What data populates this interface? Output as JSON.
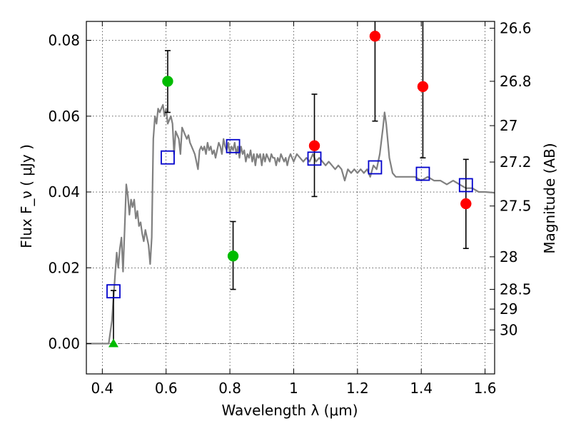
{
  "chart_data": {
    "type": "scatter",
    "title": "",
    "xlabel": "Wavelength  λ (μm)",
    "ylabel": "Flux  F_ν  ( μJy )",
    "ylabel_right": "Magnitude (AB)",
    "xlim": [
      0.35,
      1.63
    ],
    "ylim": [
      -0.008,
      0.085
    ],
    "grid": true,
    "x_ticks": [
      {
        "v": 0.4,
        "label": "0.4"
      },
      {
        "v": 0.6,
        "label": "0.6"
      },
      {
        "v": 0.8,
        "label": "0.8"
      },
      {
        "v": 1.0,
        "label": "1"
      },
      {
        "v": 1.2,
        "label": "1.2"
      },
      {
        "v": 1.4,
        "label": "1.4"
      },
      {
        "v": 1.6,
        "label": "1.6"
      }
    ],
    "y_ticks": [
      {
        "v": 0.0,
        "label": "0.00"
      },
      {
        "v": 0.02,
        "label": "0.02"
      },
      {
        "v": 0.04,
        "label": "0.04"
      },
      {
        "v": 0.06,
        "label": "0.06"
      },
      {
        "v": 0.08,
        "label": "0.08"
      }
    ],
    "right_ticks": [
      {
        "label": "26.6",
        "flux": 0.0832
      },
      {
        "label": "26.8",
        "flux": 0.0692
      },
      {
        "label": "27",
        "flux": 0.0575
      },
      {
        "label": "27.2",
        "flux": 0.0479
      },
      {
        "label": "27.5",
        "flux": 0.0363
      },
      {
        "label": "28",
        "flux": 0.0229
      },
      {
        "label": "28.5",
        "flux": 0.0143
      },
      {
        "label": "29",
        "flux": 0.0091
      },
      {
        "label": "30",
        "flux": 0.0036
      }
    ],
    "template_series": {
      "color": "#808080",
      "points": [
        [
          0.35,
          0.0
        ],
        [
          0.42,
          0.0
        ],
        [
          0.43,
          0.006
        ],
        [
          0.44,
          0.018
        ],
        [
          0.445,
          0.024
        ],
        [
          0.45,
          0.02
        ],
        [
          0.455,
          0.025
        ],
        [
          0.46,
          0.028
        ],
        [
          0.465,
          0.019
        ],
        [
          0.47,
          0.03
        ],
        [
          0.475,
          0.042
        ],
        [
          0.48,
          0.039
        ],
        [
          0.485,
          0.034
        ],
        [
          0.49,
          0.038
        ],
        [
          0.495,
          0.036
        ],
        [
          0.5,
          0.038
        ],
        [
          0.505,
          0.033
        ],
        [
          0.51,
          0.035
        ],
        [
          0.515,
          0.031
        ],
        [
          0.52,
          0.032
        ],
        [
          0.525,
          0.029
        ],
        [
          0.53,
          0.027
        ],
        [
          0.535,
          0.03
        ],
        [
          0.54,
          0.028
        ],
        [
          0.545,
          0.026
        ],
        [
          0.55,
          0.021
        ],
        [
          0.555,
          0.028
        ],
        [
          0.56,
          0.054
        ],
        [
          0.565,
          0.06
        ],
        [
          0.57,
          0.058
        ],
        [
          0.575,
          0.062
        ],
        [
          0.58,
          0.061
        ],
        [
          0.585,
          0.062
        ],
        [
          0.59,
          0.063
        ],
        [
          0.595,
          0.06
        ],
        [
          0.6,
          0.062
        ],
        [
          0.605,
          0.058
        ],
        [
          0.61,
          0.059
        ],
        [
          0.615,
          0.06
        ],
        [
          0.62,
          0.058
        ],
        [
          0.625,
          0.05
        ],
        [
          0.63,
          0.056
        ],
        [
          0.635,
          0.055
        ],
        [
          0.64,
          0.054
        ],
        [
          0.645,
          0.05
        ],
        [
          0.65,
          0.057
        ],
        [
          0.655,
          0.056
        ],
        [
          0.66,
          0.055
        ],
        [
          0.665,
          0.054
        ],
        [
          0.67,
          0.055
        ],
        [
          0.675,
          0.053
        ],
        [
          0.68,
          0.052
        ],
        [
          0.685,
          0.051
        ],
        [
          0.69,
          0.05
        ],
        [
          0.695,
          0.048
        ],
        [
          0.7,
          0.046
        ],
        [
          0.705,
          0.051
        ],
        [
          0.71,
          0.052
        ],
        [
          0.715,
          0.051
        ],
        [
          0.72,
          0.052
        ],
        [
          0.725,
          0.05
        ],
        [
          0.73,
          0.053
        ],
        [
          0.735,
          0.051
        ],
        [
          0.74,
          0.052
        ],
        [
          0.745,
          0.05
        ],
        [
          0.75,
          0.051
        ],
        [
          0.755,
          0.049
        ],
        [
          0.76,
          0.051
        ],
        [
          0.765,
          0.053
        ],
        [
          0.77,
          0.052
        ],
        [
          0.775,
          0.05
        ],
        [
          0.78,
          0.054
        ],
        [
          0.785,
          0.052
        ],
        [
          0.79,
          0.051
        ],
        [
          0.795,
          0.053
        ],
        [
          0.8,
          0.05
        ],
        [
          0.805,
          0.052
        ],
        [
          0.81,
          0.051
        ],
        [
          0.815,
          0.053
        ],
        [
          0.82,
          0.05
        ],
        [
          0.825,
          0.052
        ],
        [
          0.83,
          0.049
        ],
        [
          0.835,
          0.052
        ],
        [
          0.84,
          0.05
        ],
        [
          0.845,
          0.051
        ],
        [
          0.85,
          0.048
        ],
        [
          0.855,
          0.05
        ],
        [
          0.86,
          0.049
        ],
        [
          0.865,
          0.051
        ],
        [
          0.87,
          0.048
        ],
        [
          0.875,
          0.05
        ],
        [
          0.88,
          0.047
        ],
        [
          0.885,
          0.05
        ],
        [
          0.89,
          0.049
        ],
        [
          0.895,
          0.05
        ],
        [
          0.9,
          0.047
        ],
        [
          0.905,
          0.05
        ],
        [
          0.91,
          0.048
        ],
        [
          0.915,
          0.05
        ],
        [
          0.92,
          0.049
        ],
        [
          0.925,
          0.048
        ],
        [
          0.93,
          0.05
        ],
        [
          0.935,
          0.049
        ],
        [
          0.94,
          0.049
        ],
        [
          0.945,
          0.047
        ],
        [
          0.95,
          0.049
        ],
        [
          0.955,
          0.048
        ],
        [
          0.96,
          0.05
        ],
        [
          0.965,
          0.049
        ],
        [
          0.97,
          0.048
        ],
        [
          0.975,
          0.049
        ],
        [
          0.98,
          0.047
        ],
        [
          0.985,
          0.049
        ],
        [
          0.99,
          0.05
        ],
        [
          0.995,
          0.049
        ],
        [
          1.0,
          0.048
        ],
        [
          1.01,
          0.05
        ],
        [
          1.02,
          0.049
        ],
        [
          1.03,
          0.048
        ],
        [
          1.04,
          0.049
        ],
        [
          1.05,
          0.048
        ],
        [
          1.06,
          0.05
        ],
        [
          1.07,
          0.048
        ],
        [
          1.08,
          0.049
        ],
        [
          1.09,
          0.048
        ],
        [
          1.1,
          0.047
        ],
        [
          1.11,
          0.048
        ],
        [
          1.12,
          0.047
        ],
        [
          1.13,
          0.046
        ],
        [
          1.14,
          0.047
        ],
        [
          1.15,
          0.046
        ],
        [
          1.16,
          0.043
        ],
        [
          1.17,
          0.046
        ],
        [
          1.18,
          0.045
        ],
        [
          1.19,
          0.046
        ],
        [
          1.2,
          0.045
        ],
        [
          1.21,
          0.046
        ],
        [
          1.22,
          0.045
        ],
        [
          1.23,
          0.046
        ],
        [
          1.24,
          0.044
        ],
        [
          1.25,
          0.047
        ],
        [
          1.26,
          0.046
        ],
        [
          1.27,
          0.05
        ],
        [
          1.28,
          0.057
        ],
        [
          1.285,
          0.061
        ],
        [
          1.29,
          0.058
        ],
        [
          1.3,
          0.049
        ],
        [
          1.31,
          0.045
        ],
        [
          1.32,
          0.044
        ],
        [
          1.34,
          0.044
        ],
        [
          1.36,
          0.044
        ],
        [
          1.38,
          0.044
        ],
        [
          1.4,
          0.043
        ],
        [
          1.42,
          0.044
        ],
        [
          1.44,
          0.043
        ],
        [
          1.46,
          0.043
        ],
        [
          1.48,
          0.042
        ],
        [
          1.5,
          0.043
        ],
        [
          1.52,
          0.042
        ],
        [
          1.54,
          0.041
        ],
        [
          1.56,
          0.041
        ],
        [
          1.58,
          0.04
        ],
        [
          1.6,
          0.04
        ],
        [
          1.63,
          0.0398
        ]
      ]
    },
    "series": [
      {
        "marker": "open-square",
        "color": "#0000cc",
        "points": [
          {
            "x": 0.435,
            "y": 0.0138
          },
          {
            "x": 0.605,
            "y": 0.0491
          },
          {
            "x": 0.81,
            "y": 0.0521
          },
          {
            "x": 1.065,
            "y": 0.0488
          },
          {
            "x": 1.255,
            "y": 0.0465
          },
          {
            "x": 1.405,
            "y": 0.0448
          },
          {
            "x": 1.54,
            "y": 0.0418
          }
        ]
      },
      {
        "marker": "circle",
        "color": "#00bb00",
        "points": [
          {
            "x": 0.605,
            "y": 0.0692,
            "yerr_lo": 0.061,
            "yerr_hi": 0.0773
          },
          {
            "x": 0.81,
            "y": 0.0231,
            "yerr_lo": 0.0143,
            "yerr_hi": 0.0322
          }
        ]
      },
      {
        "marker": "circle",
        "color": "#ff0000",
        "points": [
          {
            "x": 1.065,
            "y": 0.0522,
            "yerr_lo": 0.0388,
            "yerr_hi": 0.0658
          },
          {
            "x": 1.255,
            "y": 0.0811,
            "yerr_lo": 0.0587,
            "yerr_hi": 0.0885
          },
          {
            "x": 1.405,
            "y": 0.0678,
            "yerr_lo": 0.049,
            "yerr_hi": 0.0885
          },
          {
            "x": 1.54,
            "y": 0.0369,
            "yerr_lo": 0.0251,
            "yerr_hi": 0.0486
          }
        ]
      },
      {
        "marker": "triangle",
        "color": "#00bb00",
        "points": [
          {
            "x": 0.435,
            "y": 0.0,
            "yerr_lo": 0.0,
            "yerr_hi": 0.014
          }
        ]
      }
    ]
  }
}
